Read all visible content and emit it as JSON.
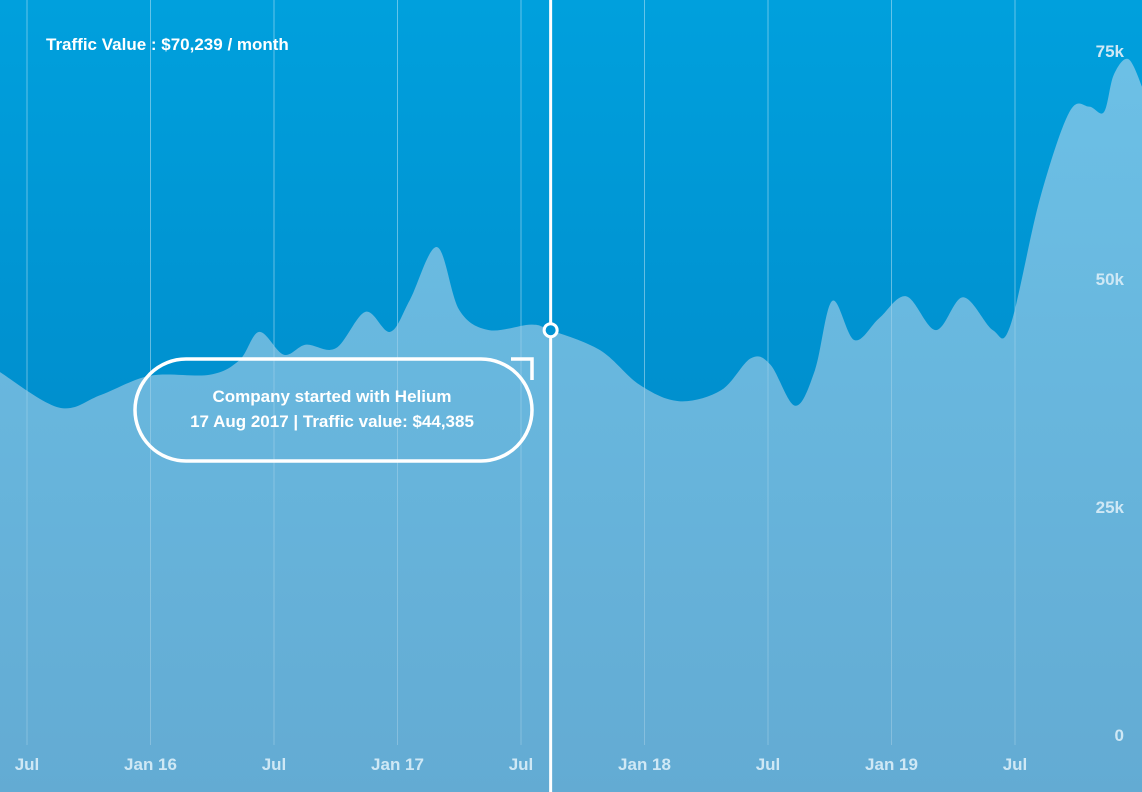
{
  "chart_data": {
    "type": "area",
    "title": "Traffic Value : $70,239 / month",
    "xlabel": "",
    "ylabel": "",
    "ylim": [
      0,
      75000
    ],
    "xlim": [
      2015.39,
      2020.02
    ],
    "grid": true,
    "y_ticks": [
      {
        "value": 0,
        "label": "0"
      },
      {
        "value": 25000,
        "label": "25k"
      },
      {
        "value": 50000,
        "label": "50k"
      },
      {
        "value": 75000,
        "label": "75k"
      }
    ],
    "x_ticks": [
      {
        "value": 2015.5,
        "label": "Jul"
      },
      {
        "value": 2016.0,
        "label": "Jan 16"
      },
      {
        "value": 2016.5,
        "label": "Jul"
      },
      {
        "value": 2017.0,
        "label": "Jan 17"
      },
      {
        "value": 2017.5,
        "label": "Jul"
      },
      {
        "value": 2018.0,
        "label": "Jan 18"
      },
      {
        "value": 2018.5,
        "label": "Jul"
      },
      {
        "value": 2019.0,
        "label": "Jan 19"
      },
      {
        "value": 2019.5,
        "label": "Jul"
      }
    ],
    "series": [
      {
        "name": "Traffic value",
        "x": [
          2015.39,
          2015.63,
          2015.8,
          2016.0,
          2016.24,
          2016.36,
          2016.44,
          2016.54,
          2016.63,
          2016.75,
          2016.87,
          2016.97,
          2017.05,
          2017.16,
          2017.25,
          2017.37,
          2017.54,
          2017.62,
          2017.82,
          2017.98,
          2018.14,
          2018.31,
          2018.43,
          2018.51,
          2018.61,
          2018.69,
          2018.76,
          2018.85,
          2018.95,
          2019.06,
          2019.18,
          2019.29,
          2019.41,
          2019.48,
          2019.6,
          2019.72,
          2019.8,
          2019.86,
          2019.9,
          2019.96,
          2020.02
        ],
        "values": [
          39800,
          35900,
          37300,
          39400,
          39500,
          41100,
          44200,
          41700,
          42800,
          42400,
          46400,
          44200,
          47700,
          53500,
          46600,
          44400,
          45000,
          44385,
          42200,
          38400,
          36600,
          37800,
          41300,
          40600,
          36100,
          40000,
          47600,
          43300,
          45700,
          48100,
          44400,
          48000,
          44400,
          44800,
          58700,
          68300,
          68900,
          68300,
          72400,
          74100,
          70700
        ]
      }
    ],
    "annotation": {
      "x": 2017.62,
      "value": 44385,
      "line1": "Company started with Helium",
      "line2": "17 Aug 2017 | Traffic value: $44,385"
    }
  },
  "colors": {
    "bg_top": "#00a0dd",
    "bg_bottom": "#0087c7",
    "area_top": "#6cc0e6",
    "area_bottom": "#63abd3",
    "tick_label": "#cfe8f5"
  }
}
